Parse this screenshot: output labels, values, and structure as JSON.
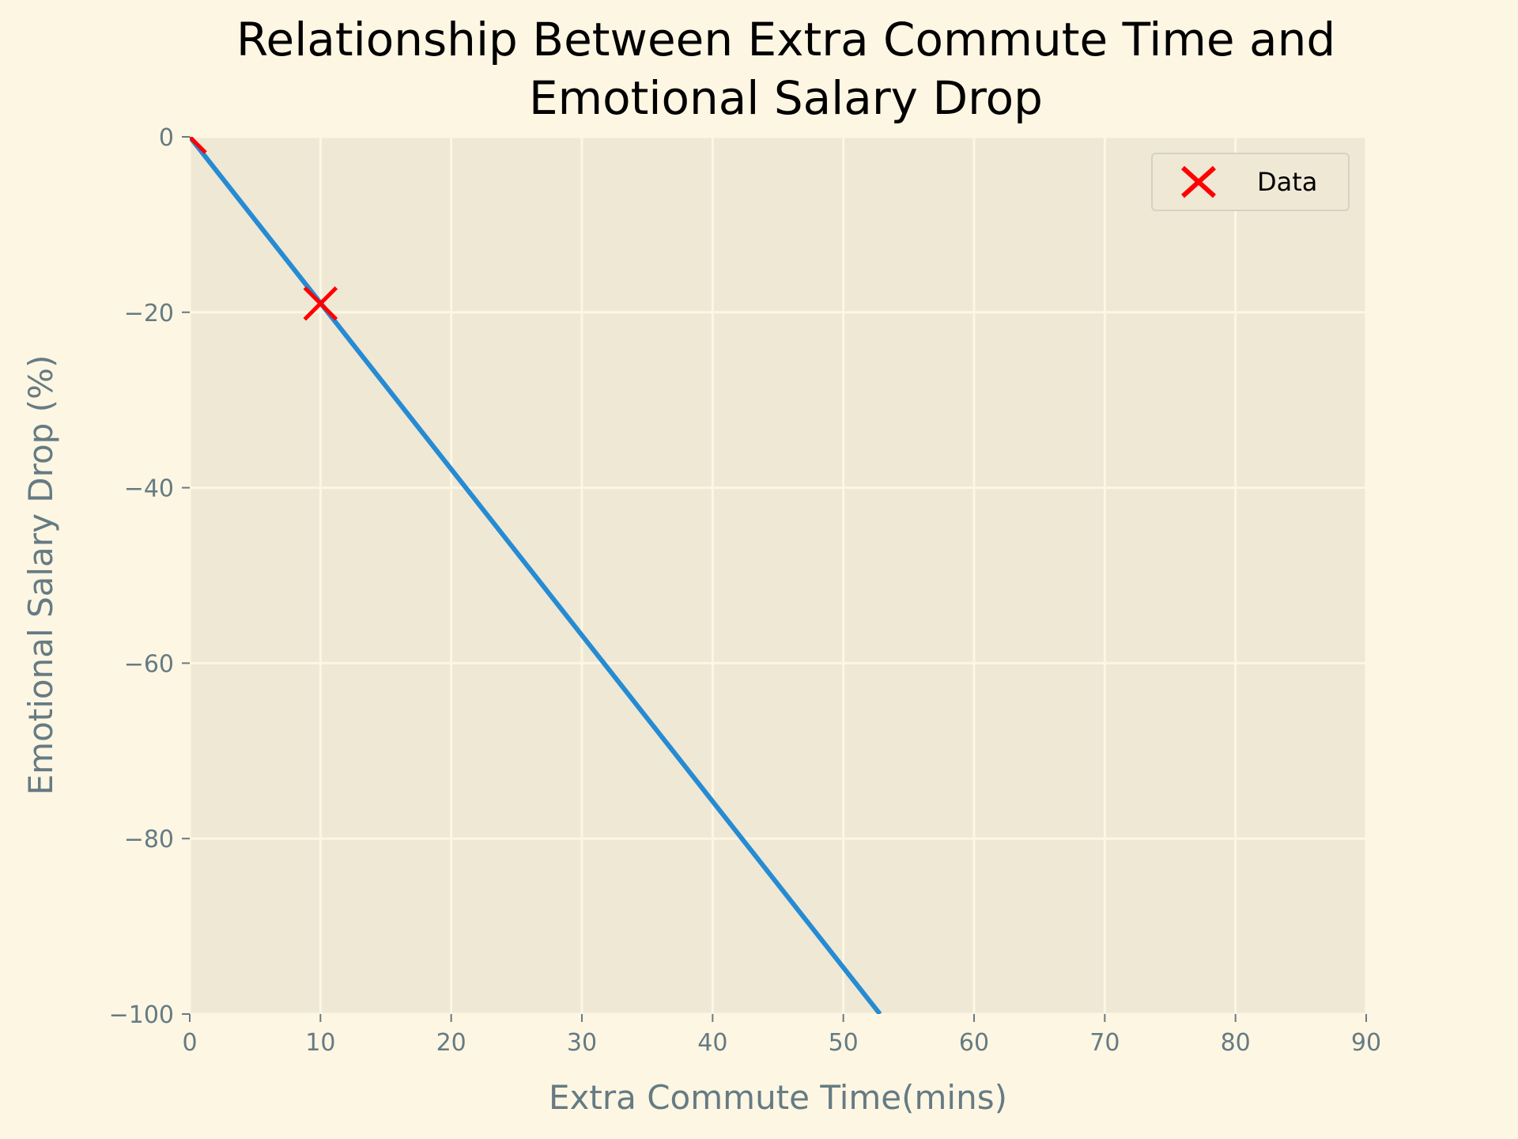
{
  "chart_data": {
    "type": "line",
    "title": "Relationship Between Extra Commute Time and Emotional Salary Drop",
    "title_lines": [
      "Relationship Between Extra Commute Time and",
      "Emotional Salary Drop"
    ],
    "xlabel": "Extra Commute Time(mins)",
    "ylabel": "Emotional Salary Drop (%)",
    "xlim": [
      0,
      90
    ],
    "ylim": [
      -100,
      0
    ],
    "xticks": [
      0,
      10,
      20,
      30,
      40,
      50,
      60,
      70,
      80,
      90
    ],
    "yticks": [
      0,
      -20,
      -40,
      -60,
      -80,
      -100
    ],
    "xtick_labels": [
      "0",
      "10",
      "20",
      "30",
      "40",
      "50",
      "60",
      "70",
      "80",
      "90"
    ],
    "ytick_labels": [
      "0",
      "−20",
      "−40",
      "−60",
      "−80",
      "−100"
    ],
    "grid": true,
    "legend_position": "top-right",
    "series": [
      {
        "name": "Data",
        "kind": "scatter",
        "marker": "x",
        "color": "#ff0000",
        "x": [
          0,
          10
        ],
        "y": [
          0,
          -19
        ]
      },
      {
        "kind": "line",
        "color": "#268bd2",
        "x": [
          0,
          52.8
        ],
        "y": [
          0,
          -100
        ]
      }
    ],
    "colors": {
      "figure_background": "#fdf6e3",
      "axes_background": "#eee8d5",
      "grid": "#fdf6e3",
      "tick_label": "#657b83"
    }
  }
}
